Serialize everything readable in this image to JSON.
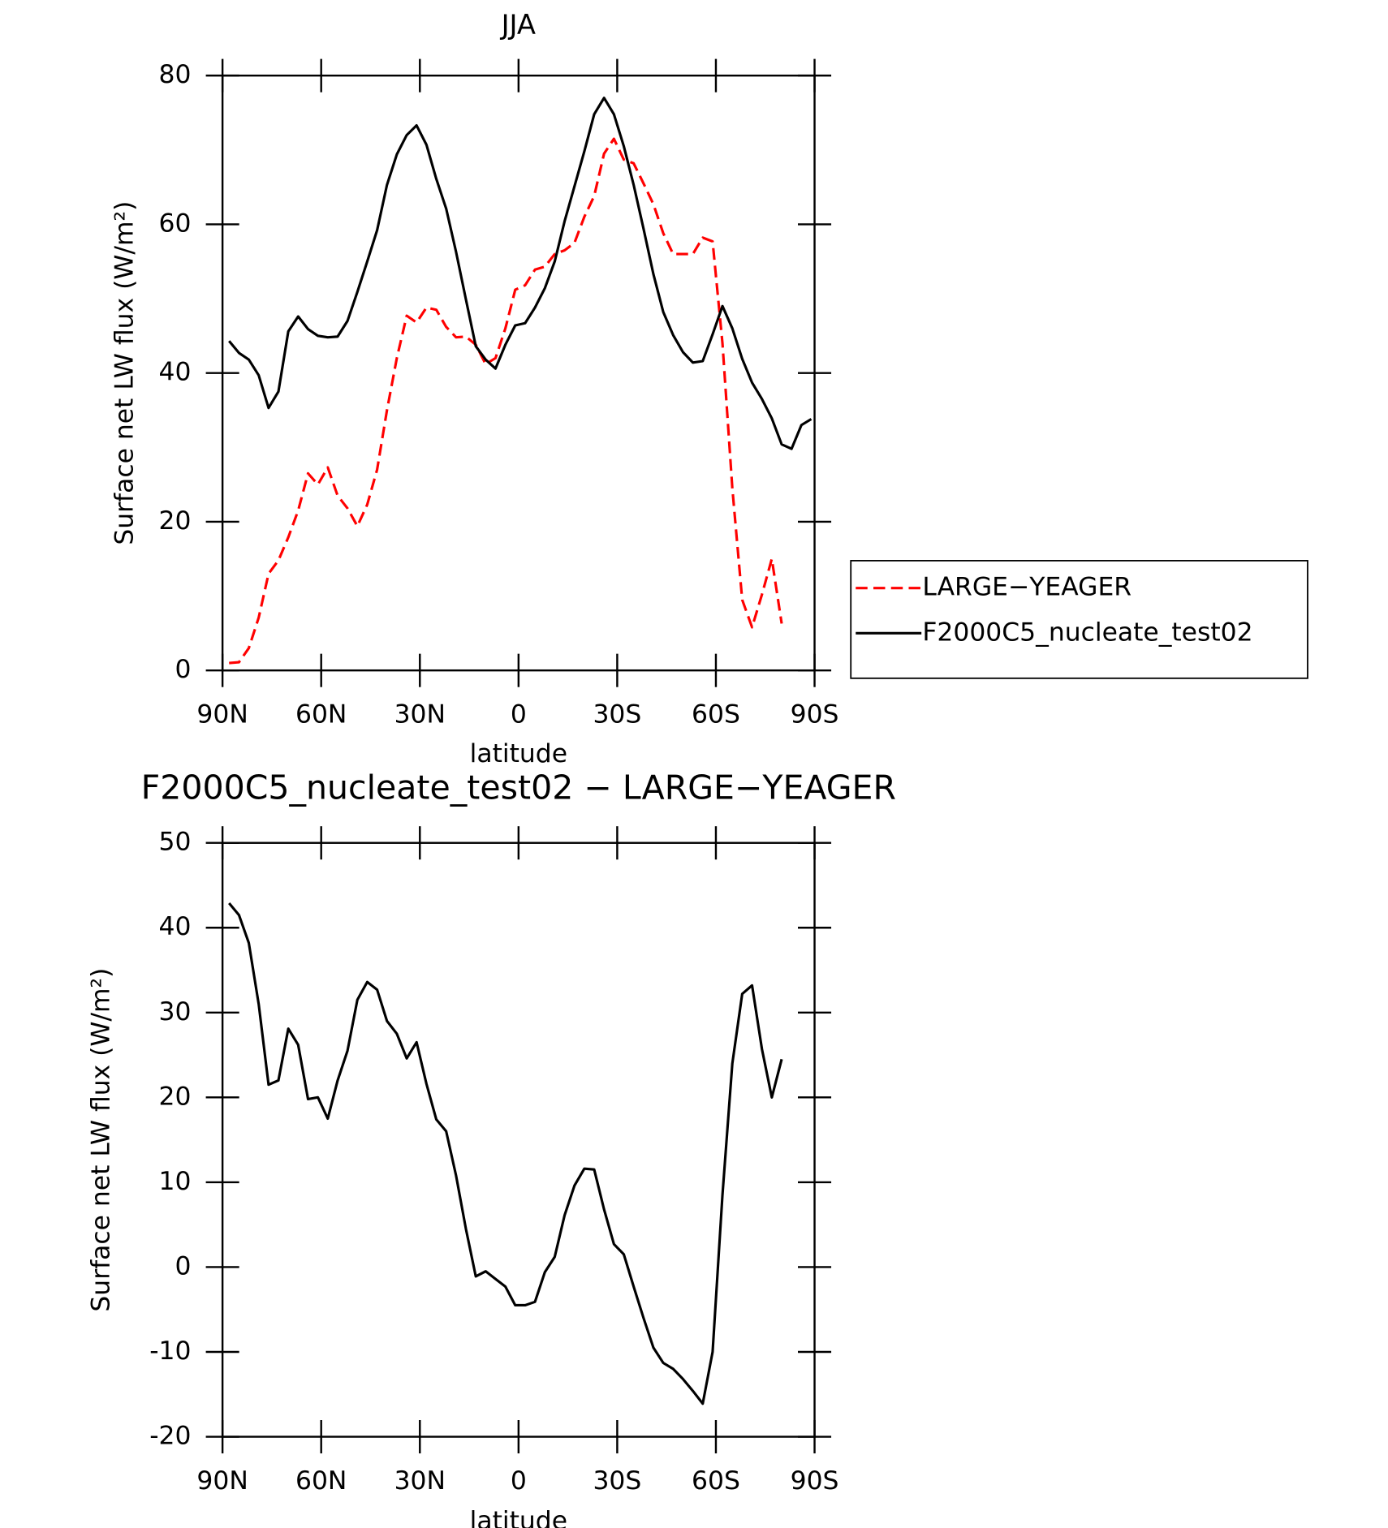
{
  "chart_data": [
    {
      "type": "line",
      "title": "JJA",
      "ylabel": "Surface net LW flux (W/m²)",
      "xlabel": "latitude",
      "x": [
        88,
        85,
        82,
        79,
        76,
        73,
        70,
        67,
        64,
        61,
        58,
        55,
        52,
        49,
        46,
        43,
        40,
        37,
        34,
        31,
        28,
        25,
        22,
        19,
        16,
        13,
        10,
        7,
        4,
        1,
        -2,
        -5,
        -8,
        -11,
        -14,
        -17,
        -20,
        -23,
        -26,
        -29,
        -32,
        -35,
        -38,
        -41,
        -44,
        -47,
        -50,
        -53,
        -56,
        -59,
        -62,
        -65,
        -68,
        -71,
        -74,
        -77,
        -80,
        -83,
        -86,
        -89
      ],
      "series": [
        {
          "name": "LARGE−YEAGER",
          "color": "#ff0000",
          "dashed": true,
          "values": [
            1.0,
            1.1,
            3.0,
            7.1,
            13,
            14.8,
            17.9,
            21.5,
            26.5,
            25.0,
            27.3,
            23.5,
            21.8,
            19.4,
            22.3,
            27.0,
            35,
            42,
            47.7,
            46.8,
            48.8,
            48.5,
            46.2,
            44.8,
            44.9,
            43.8,
            41.2,
            42.0,
            46,
            51.2,
            51.8,
            53.9,
            54.3,
            56.0,
            56.5,
            57.5,
            61.0,
            63.8,
            69.5,
            71.5,
            68.7,
            68.2,
            65.5,
            62.7,
            58.8,
            56.0,
            56.0,
            56.0,
            58.2,
            57.7,
            44,
            24.5,
            9.5,
            5.8,
            10.2,
            15.0,
            6.3,
            null,
            null,
            null
          ]
        },
        {
          "name": "F2000C5_nucleate_test02",
          "color": "#000000",
          "dashed": false,
          "values": [
            44.3,
            42.7,
            41.8,
            39.7,
            35.3,
            37.5,
            45.6,
            47.6,
            45.9,
            45.0,
            44.8,
            44.9,
            47,
            50.9,
            55.0,
            59.2,
            65.3,
            69.4,
            72.0,
            73.3,
            70.7,
            66.1,
            62.1,
            56.3,
            49.9,
            43.6,
            41.8,
            40.6,
            43.8,
            46.4,
            46.7,
            48.8,
            51.4,
            55.0,
            60.4,
            65.1,
            69.8,
            74.8,
            77.0,
            74.8,
            70.5,
            65.3,
            59.4,
            53.3,
            48.2,
            45.1,
            42.8,
            41.4,
            41.6,
            45.2,
            49.0,
            46.0,
            41.9,
            38.7,
            36.5,
            33.9,
            30.4,
            29.8,
            33.0,
            33.8
          ]
        }
      ],
      "xlim": [
        90,
        -90
      ],
      "xticks": [
        {
          "value": 90,
          "label": "90N"
        },
        {
          "value": 60,
          "label": "60N"
        },
        {
          "value": 30,
          "label": "30N"
        },
        0,
        {
          "value": -30,
          "label": "30S"
        },
        {
          "value": -60,
          "label": "60S"
        },
        {
          "value": -90,
          "label": "90S"
        }
      ],
      "ylim": [
        0,
        80
      ],
      "yticks": [
        0,
        20,
        40,
        60,
        80
      ],
      "legend": "right"
    },
    {
      "type": "line",
      "title": "F2000C5_nucleate_test02 − LARGE−YEAGER",
      "ylabel": "Surface net LW flux (W/m²)",
      "xlabel": "latitude",
      "x": [
        88,
        85,
        82,
        79,
        76,
        73,
        70,
        67,
        64,
        61,
        58,
        55,
        52,
        49,
        46,
        43,
        40,
        37,
        34,
        31,
        28,
        25,
        22,
        19,
        16,
        13,
        10,
        7,
        4,
        1,
        -2,
        -5,
        -8,
        -11,
        -14,
        -17,
        -20,
        -23,
        -26,
        -29,
        -32,
        -35,
        -38,
        -41,
        -44,
        -47,
        -50,
        -53,
        -56,
        -59,
        -62,
        -65,
        -68,
        -71,
        -74,
        -77,
        -80,
        -83,
        -86,
        -89
      ],
      "series": [
        {
          "color": "#000000",
          "dashed": false,
          "values": [
            42.9,
            41.5,
            38.2,
            31,
            21.5,
            22,
            28.1,
            26.2,
            19.8,
            20.0,
            17.5,
            22,
            25.5,
            31.5,
            33.6,
            32.7,
            29,
            27.5,
            24.6,
            26.5,
            21.6,
            17.4,
            16.0,
            10.8,
            4.5,
            -1.1,
            -0.5,
            -1.4,
            -2.3,
            -4.5,
            -4.5,
            -4.1,
            -0.6,
            1.2,
            6.1,
            9.6,
            11.6,
            11.5,
            6.8,
            2.7,
            1.5,
            -2.3,
            -6.0,
            -9.5,
            -11.3,
            -12.0,
            -13.2,
            -14.6,
            -16.1,
            -10,
            8.5,
            24,
            32.2,
            33.2,
            25.7,
            20,
            24.5,
            null,
            null,
            null
          ]
        }
      ],
      "xlim": [
        90,
        -90
      ],
      "xticks": [
        {
          "value": 90,
          "label": "90N"
        },
        {
          "value": 60,
          "label": "60N"
        },
        {
          "value": 30,
          "label": "30N"
        },
        0,
        {
          "value": -30,
          "label": "30S"
        },
        {
          "value": -60,
          "label": "60S"
        },
        {
          "value": -90,
          "label": "90S"
        }
      ],
      "ylim": [
        -20,
        50
      ],
      "yticks": [
        -20,
        -10,
        0,
        10,
        20,
        30,
        40,
        50
      ]
    }
  ]
}
